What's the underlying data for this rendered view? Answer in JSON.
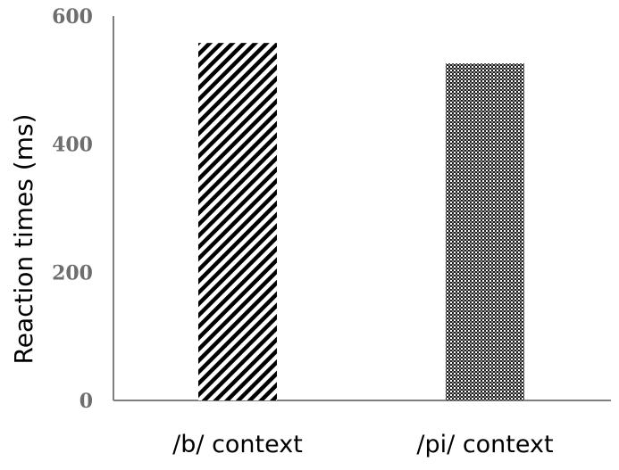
{
  "chart_data": {
    "type": "bar",
    "categories": [
      "/b/ context",
      "/pi/ context"
    ],
    "values": [
      558,
      526
    ],
    "ylabel": "Reaction times (ms)",
    "ylim": [
      0,
      600
    ],
    "yticks": [
      0,
      200,
      400,
      600
    ],
    "grid": false,
    "legend": "none",
    "patterns": [
      "diagonal-stripes",
      "checkered"
    ],
    "colors": {
      "stroke": "#000000",
      "axis": "#7f7f7f",
      "tick_text": "#6e6e6e"
    }
  }
}
